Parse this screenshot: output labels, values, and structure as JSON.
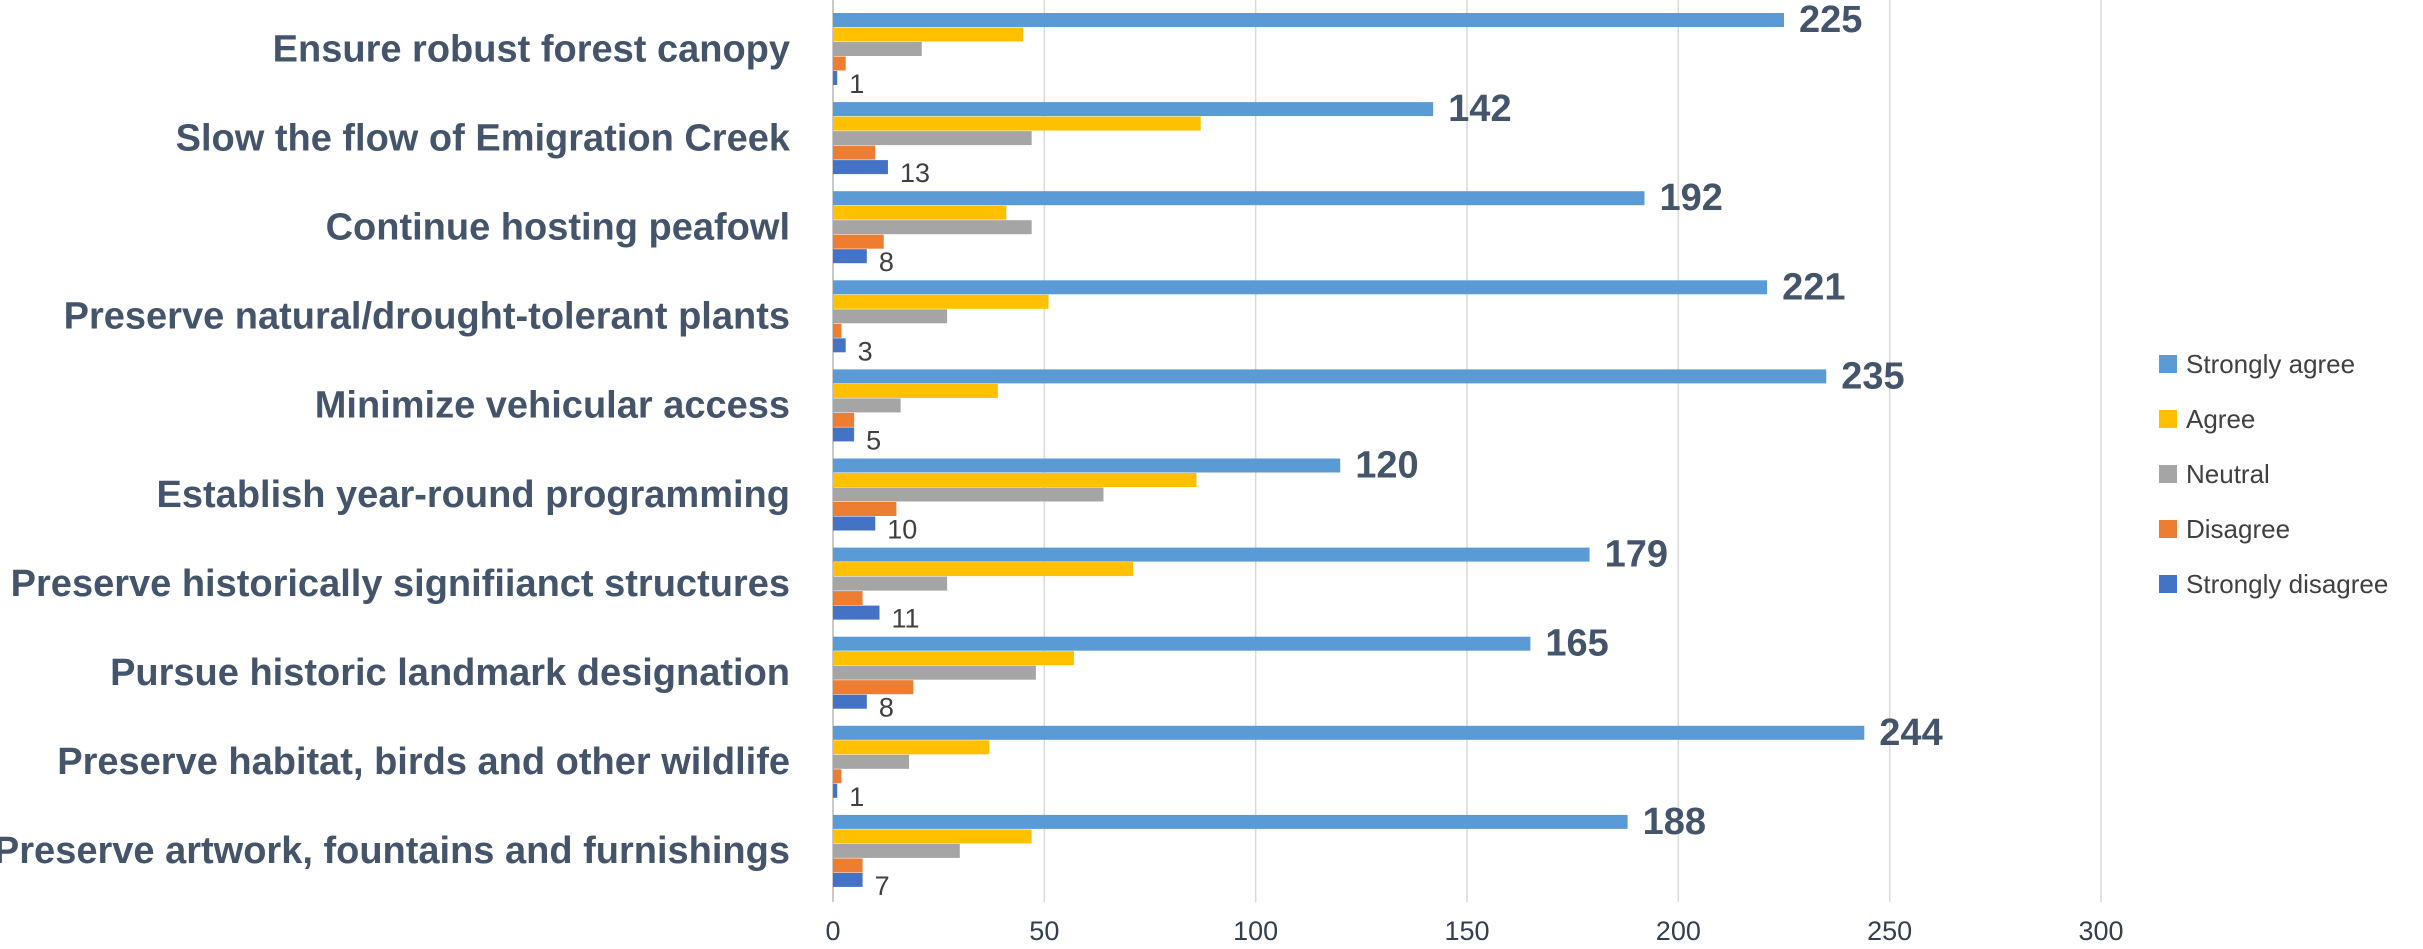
{
  "chart_data": {
    "type": "bar",
    "orientation": "horizontal",
    "categories": [
      "Ensure robust forest canopy",
      "Slow the flow of Emigration Creek",
      "Continue hosting peafowl",
      "Preserve natural/drought-tolerant plants",
      "Minimize vehicular access",
      "Establish year-round programming",
      "Preserve historically signifiianct structures",
      "Pursue historic landmark designation",
      "Preserve habitat, birds and other wildlife",
      "Preserve artwork, fountains and furnishings"
    ],
    "series": [
      {
        "name": "Strongly agree",
        "color": "#5b9bd5",
        "values": [
          225,
          142,
          192,
          221,
          235,
          120,
          179,
          165,
          244,
          188
        ],
        "labeled": true
      },
      {
        "name": "Agree",
        "color": "#ffc000",
        "values": [
          45,
          87,
          41,
          51,
          39,
          86,
          71,
          57,
          37,
          47
        ],
        "labeled": false
      },
      {
        "name": "Neutral",
        "color": "#a5a5a5",
        "values": [
          21,
          47,
          47,
          27,
          16,
          64,
          27,
          48,
          18,
          30
        ],
        "labeled": false
      },
      {
        "name": "Disagree",
        "color": "#ed7d31",
        "values": [
          3,
          10,
          12,
          2,
          5,
          15,
          7,
          19,
          2,
          7
        ],
        "labeled": false
      },
      {
        "name": "Strongly disagree",
        "color": "#4472c4",
        "values": [
          1,
          13,
          8,
          3,
          5,
          10,
          11,
          8,
          1,
          7
        ],
        "labeled": true
      }
    ],
    "xlim": [
      0,
      300
    ],
    "xticks": [
      0,
      50,
      100,
      150,
      200,
      250,
      300
    ],
    "grid": "vertical",
    "legend": "right",
    "title": "",
    "xlabel": "",
    "ylabel": ""
  }
}
